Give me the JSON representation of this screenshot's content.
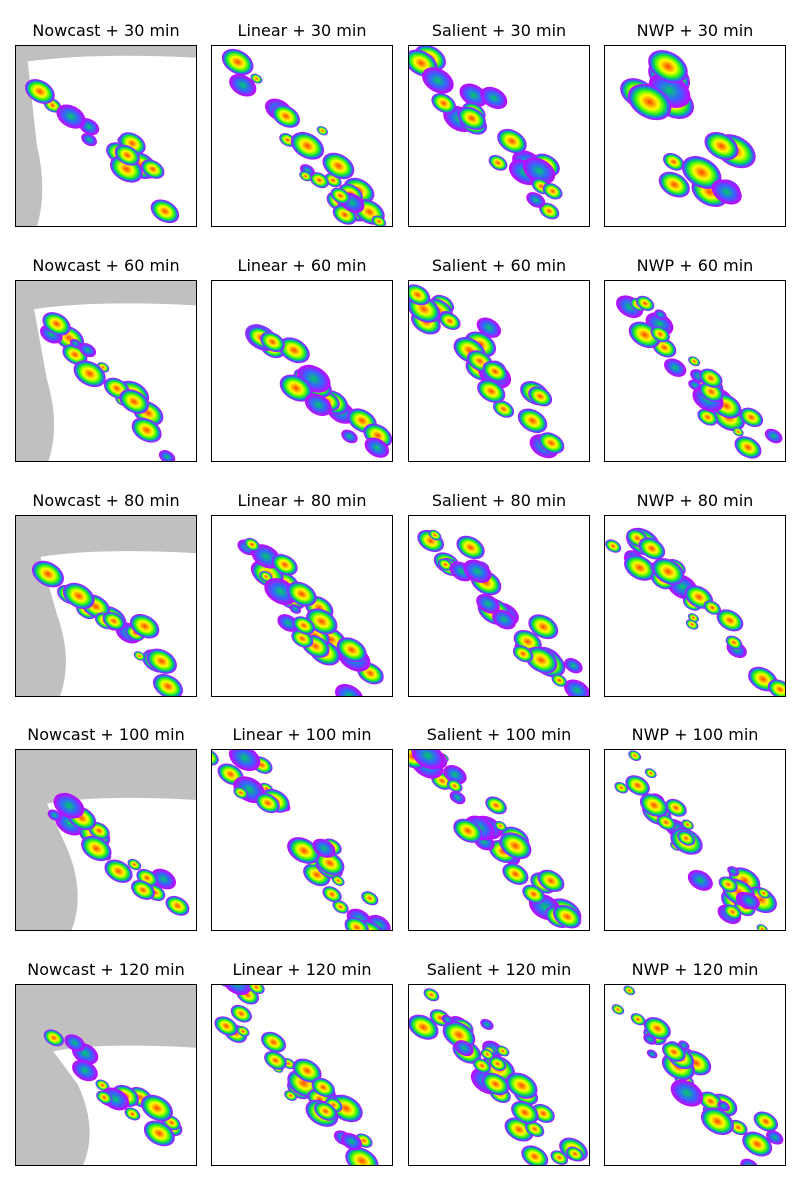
{
  "figure": {
    "rows": [
      {
        "lead": "+ 30 min",
        "titles": [
          "Nowcast + 30 min",
          "Linear + 30 min",
          "Salient + 30 min",
          "NWP + 30 min"
        ]
      },
      {
        "lead": "+ 60 min",
        "titles": [
          "Nowcast + 60 min",
          "Linear + 60 min",
          "Salient + 60 min",
          "NWP + 60 min"
        ]
      },
      {
        "lead": "+ 80 min",
        "titles": [
          "Nowcast + 80 min",
          "Linear + 80 min",
          "Salient + 80 min",
          "NWP + 80 min"
        ]
      },
      {
        "lead": "+ 100 min",
        "titles": [
          "Nowcast + 100 min",
          "Linear + 100 min",
          "Salient + 100 min",
          "NWP + 100 min"
        ]
      },
      {
        "lead": "+ 120 min",
        "titles": [
          "Nowcast + 120 min",
          "Linear + 120 min",
          "Salient + 120 min",
          "NWP + 120 min"
        ]
      }
    ],
    "methods": [
      "Nowcast",
      "Linear",
      "Salient",
      "NWP"
    ],
    "colors": {
      "no_data": "#c0c0c0",
      "scale": [
        "#9900cc",
        "#cc00ff",
        "#3366ff",
        "#00cc66",
        "#66ff00",
        "#ffff00",
        "#ffaa00",
        "#ff4400"
      ]
    }
  }
}
